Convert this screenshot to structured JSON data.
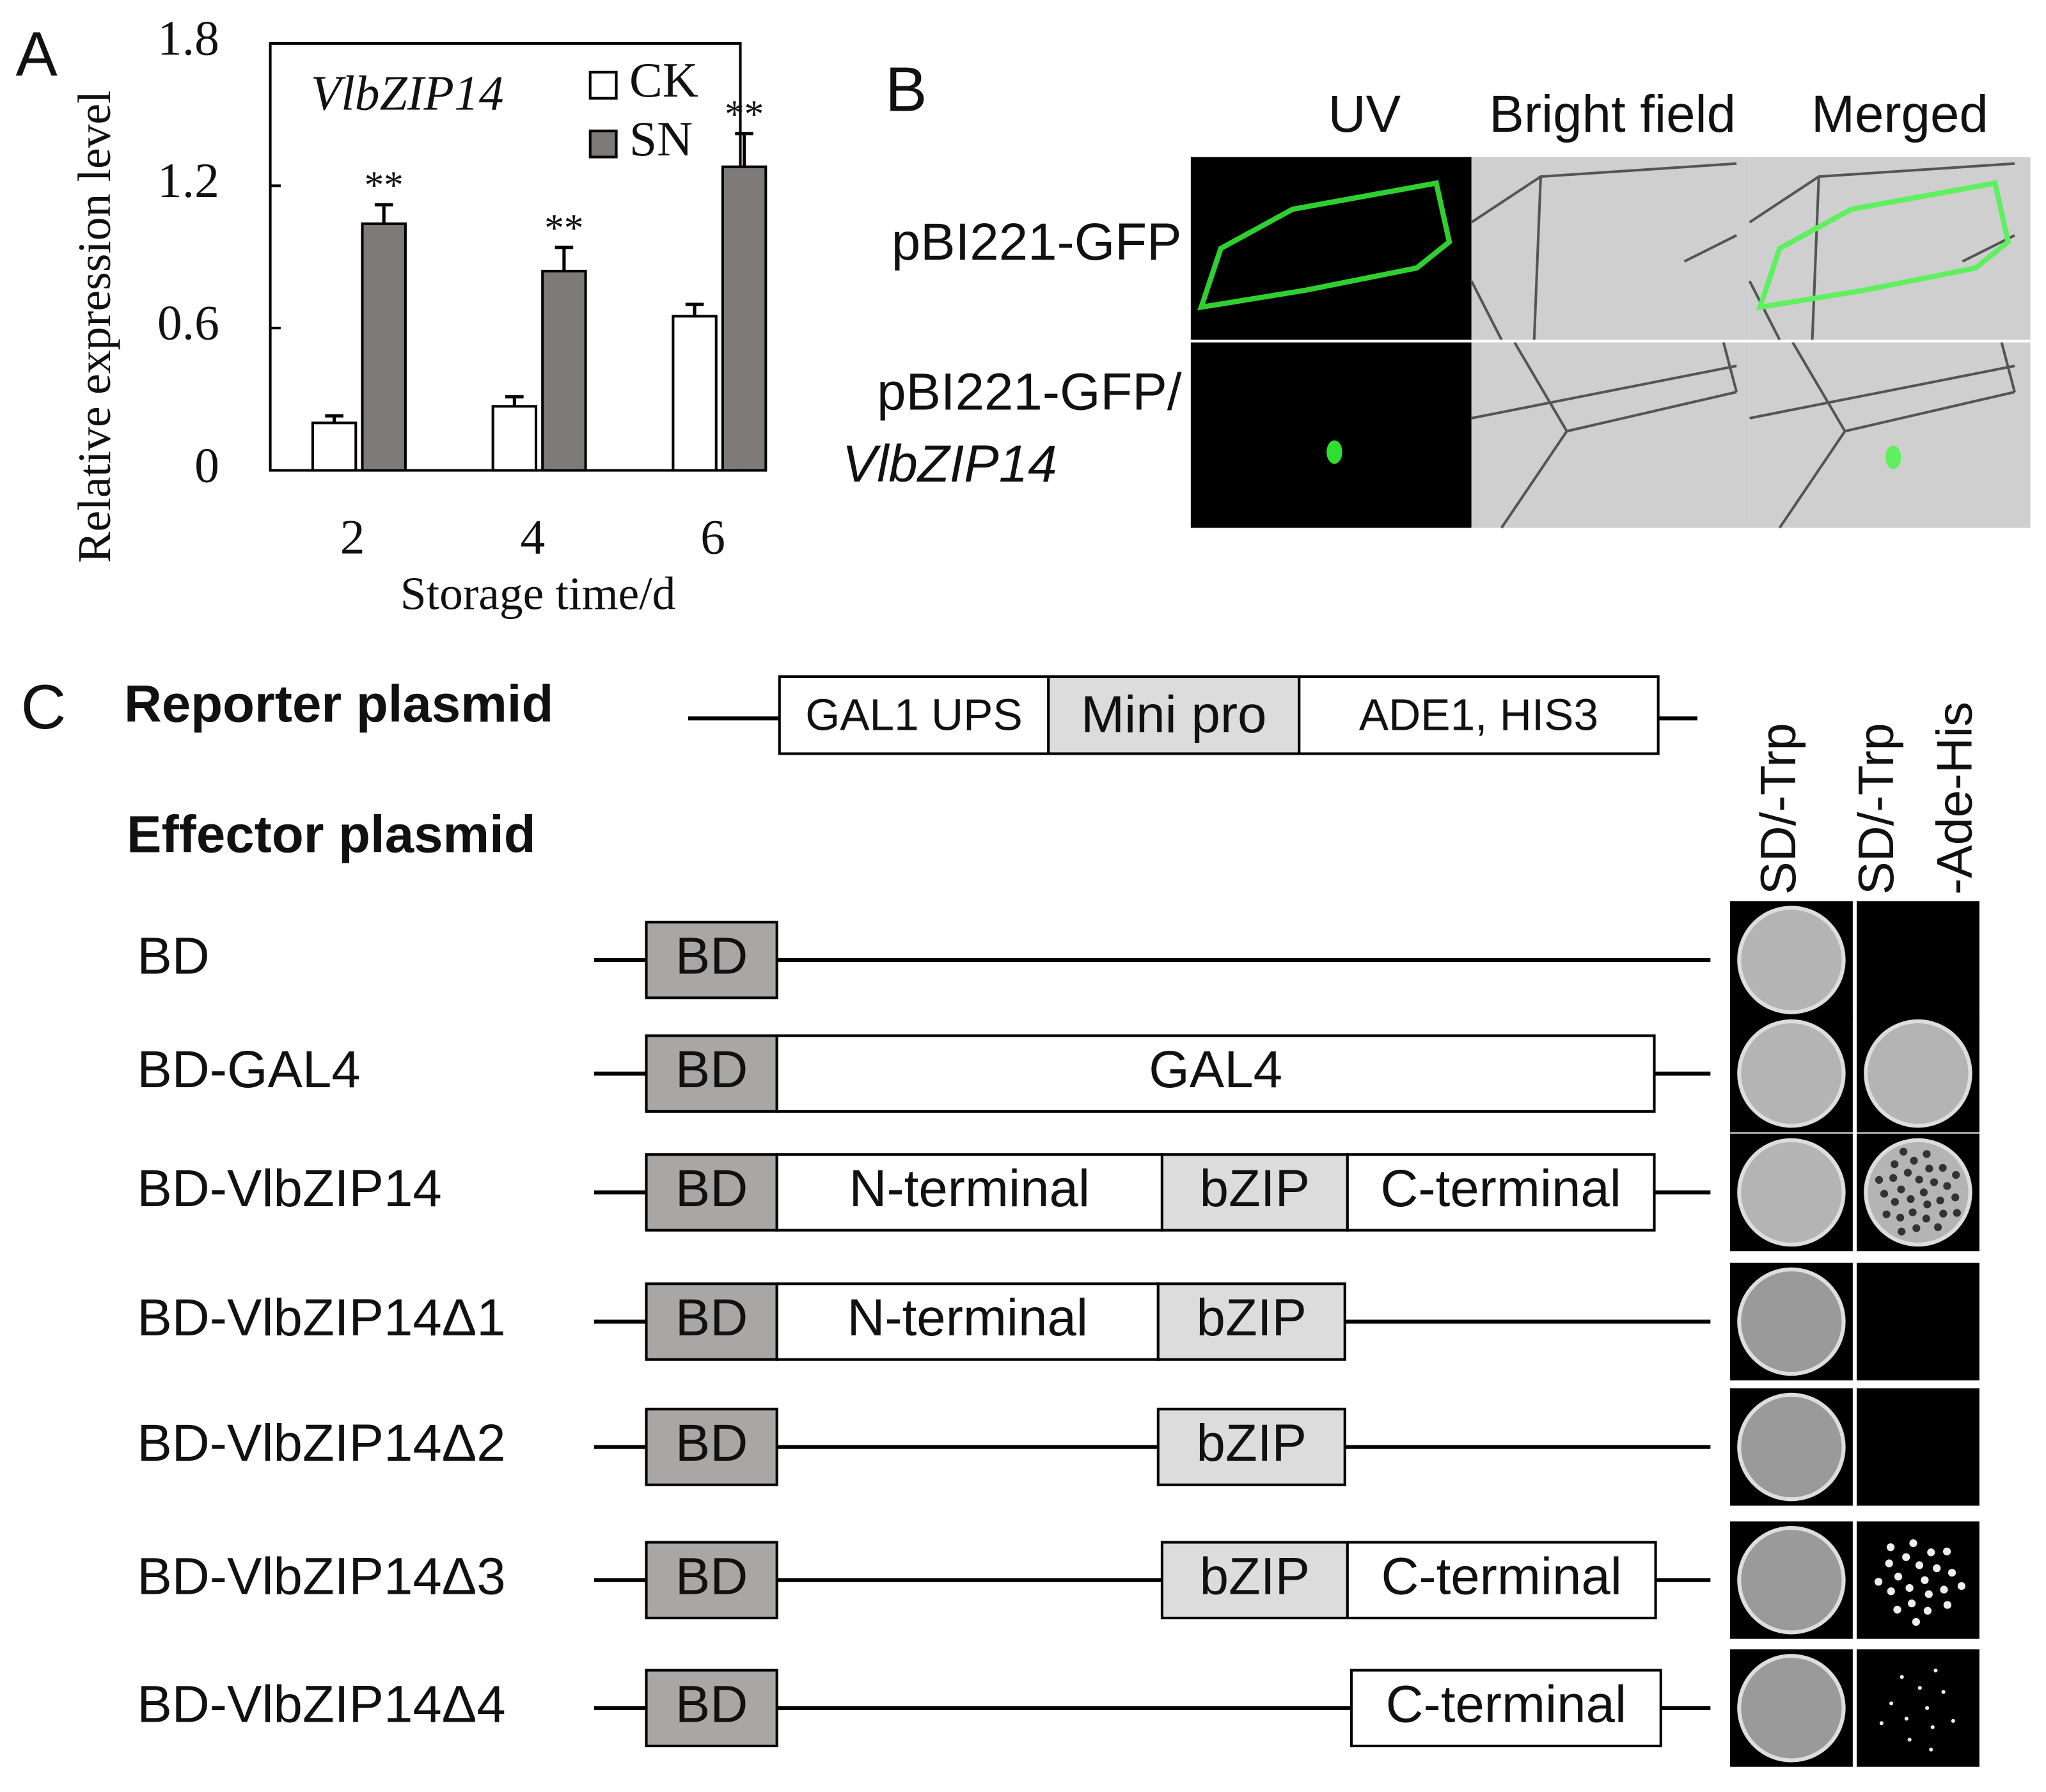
{
  "chart_data": {
    "type": "bar",
    "panel_label": "A",
    "title": "VlbZIP14",
    "x_label": "Storage time/d",
    "y_label": "Relative expression level",
    "categories": [
      "2",
      "4",
      "6"
    ],
    "series": [
      {
        "name": "CK",
        "color": "#ffffff",
        "values": [
          0.2,
          0.27,
          0.65
        ],
        "errors": [
          0.03,
          0.04,
          0.05
        ]
      },
      {
        "name": "SN",
        "color": "#7f7a7a",
        "values": [
          1.04,
          0.84,
          1.28
        ],
        "errors": [
          0.08,
          0.1,
          0.14
        ],
        "significance": [
          "**",
          "**",
          "**"
        ]
      }
    ],
    "ylim": [
      0,
      1.8
    ],
    "yticks": [
      0,
      0.6,
      1.2,
      1.8
    ]
  },
  "panel_b": {
    "label": "B",
    "columns": [
      "UV",
      "Bright field",
      "Merged"
    ],
    "rows": [
      {
        "lines": [
          "pBI221-GFP"
        ]
      },
      {
        "lines": [
          "pBI221-GFP/",
          "VlbZIP14"
        ]
      }
    ]
  },
  "panel_c": {
    "label": "C",
    "reporter": {
      "title": "Reporter plasmid",
      "segments": [
        "GAL1 UPS",
        "Mini pro",
        "ADE1, HIS3"
      ]
    },
    "effector_title": "Effector plasmid",
    "columns": [
      [
        "SD/-Trp"
      ],
      [
        "SD/-Trp",
        "-Ade-His"
      ]
    ],
    "rows": [
      {
        "label": "BD",
        "segments": [
          "BD"
        ]
      },
      {
        "label": "BD-GAL4",
        "segments": [
          "BD",
          "GAL4"
        ]
      },
      {
        "label": "BD-VlbZIP14",
        "segments": [
          "BD",
          "N-terminal",
          "bZIP",
          "C-terminal"
        ]
      },
      {
        "label": "BD-VlbZIP14Δ1",
        "segments": [
          "BD",
          "N-terminal",
          "bZIP"
        ]
      },
      {
        "label": "BD-VlbZIP14Δ2",
        "segments": [
          "BD",
          "bZIP"
        ]
      },
      {
        "label": "BD-VlbZIP14Δ3",
        "segments": [
          "BD",
          "bZIP",
          "C-terminal"
        ]
      },
      {
        "label": "BD-VlbZIP14Δ4",
        "segments": [
          "BD",
          "C-terminal"
        ]
      }
    ]
  }
}
